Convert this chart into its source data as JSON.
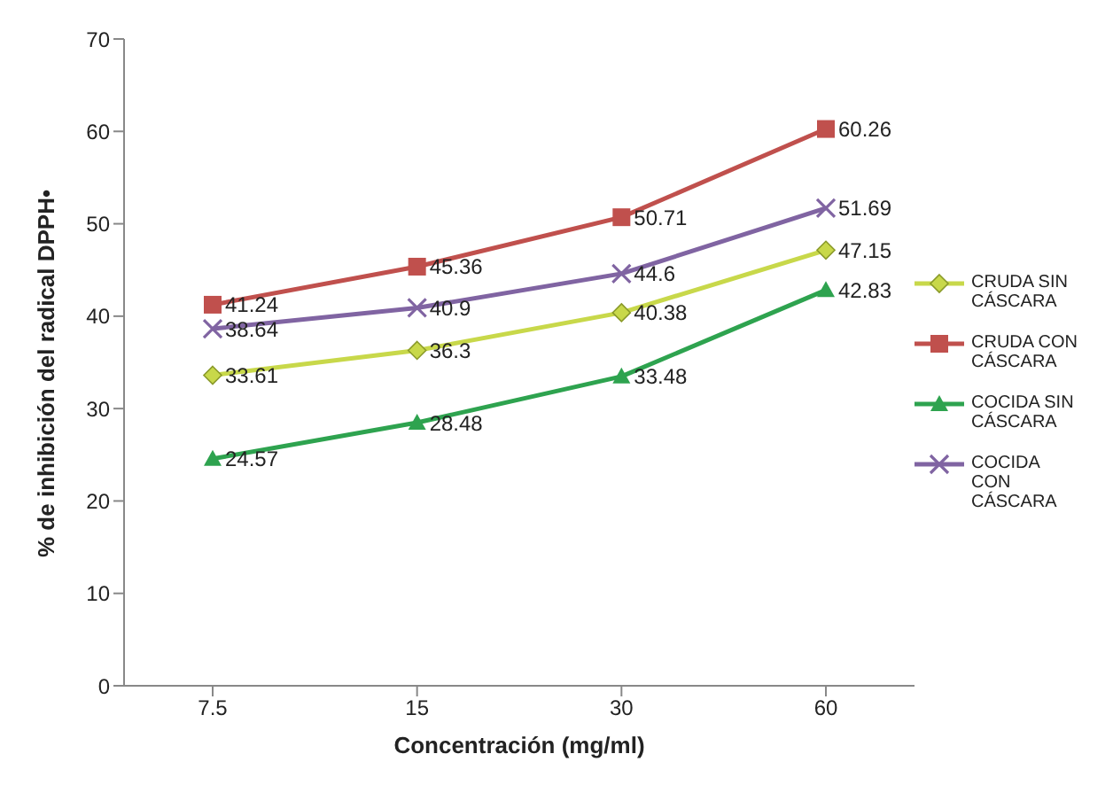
{
  "chart_data": {
    "type": "line",
    "xlabel": "Concentración (mg/ml)",
    "ylabel": "% de inhibición del radical DPPH•",
    "categories": [
      "7.5",
      "15",
      "30",
      "60"
    ],
    "ylim": [
      0,
      70
    ],
    "yticks": [
      0,
      10,
      20,
      30,
      40,
      50,
      60,
      70
    ],
    "grid": false,
    "legend": "right",
    "data_labels": true,
    "series": [
      {
        "name": "CRUDA SIN CÁSCARA",
        "color": "#c8d84a",
        "marker": "diamond",
        "values": [
          33.61,
          36.3,
          40.38,
          47.15
        ]
      },
      {
        "name": "CRUDA CON CÁSCARA",
        "color": "#c0504d",
        "marker": "square",
        "values": [
          41.24,
          45.36,
          50.71,
          60.26
        ]
      },
      {
        "name": "COCIDA SIN CÁSCARA",
        "color": "#2ea34f",
        "marker": "triangle",
        "values": [
          24.57,
          28.48,
          33.48,
          42.83
        ]
      },
      {
        "name": "COCIDA CON CÁSCARA",
        "color": "#8064a2",
        "marker": "cross",
        "values": [
          38.64,
          40.9,
          44.6,
          51.69
        ]
      }
    ]
  }
}
